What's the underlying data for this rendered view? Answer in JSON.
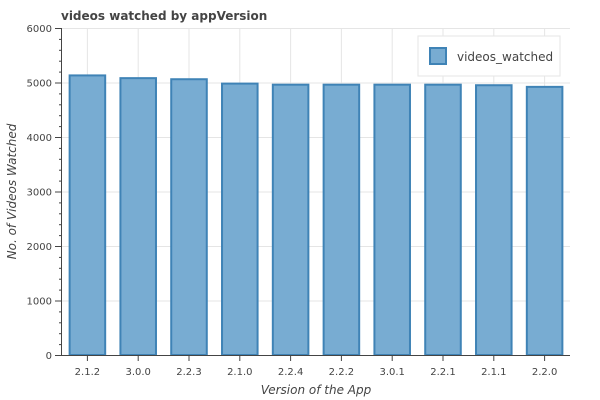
{
  "chart_data": {
    "type": "bar",
    "title": "videos watched by appVersion",
    "xlabel": "Version of the App",
    "ylabel": "No. of Videos Watched",
    "categories": [
      "2.1.2",
      "3.0.0",
      "2.2.3",
      "2.1.0",
      "2.2.4",
      "2.2.2",
      "3.0.1",
      "2.2.1",
      "2.1.1",
      "2.2.0"
    ],
    "series": [
      {
        "name": "videos_watched",
        "values": [
          5130,
          5080,
          5060,
          4980,
          4960,
          4960,
          4960,
          4960,
          4950,
          4920
        ]
      }
    ],
    "ylim": [
      0,
      6000
    ],
    "yticks": [
      0,
      1000,
      2000,
      3000,
      4000,
      5000,
      6000
    ],
    "grid": true,
    "legend_position": "top-right",
    "colors": {
      "bar_fill": "#78acd2",
      "bar_stroke": "#3f83b6",
      "grid": "#e5e5e5",
      "axis": "#444444"
    }
  }
}
